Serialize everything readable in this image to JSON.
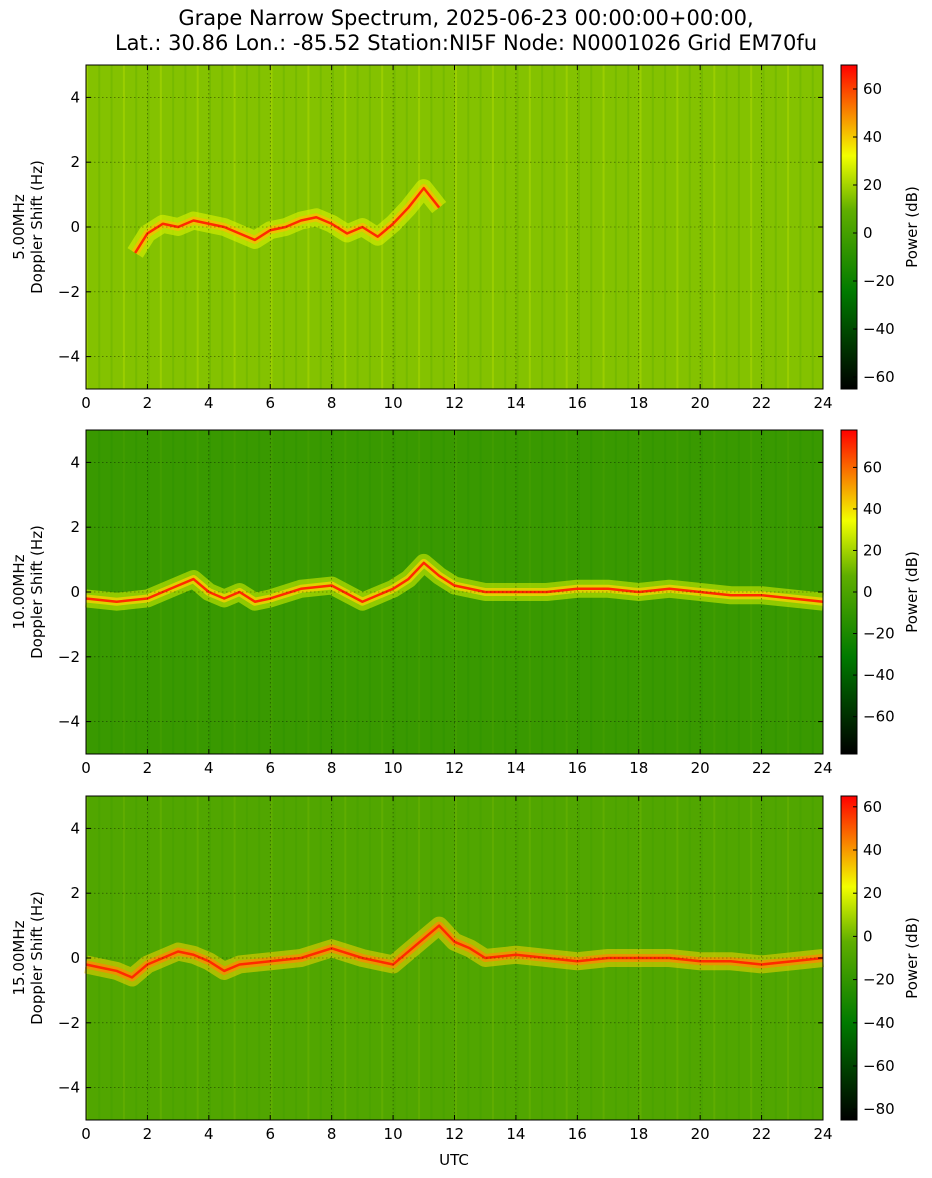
{
  "figure": {
    "title_line1": "Grape Narrow Spectrum, 2025-06-23 00:00:00+00:00,",
    "title_line2": "Lat.: 30.86 Lon.: -85.52 Station:NI5F Node: N0001026 Grid EM70fu",
    "xlabel": "UTC",
    "colormap": [
      "#000000",
      "#007a00",
      "#f2ff00",
      "#ff0000"
    ]
  },
  "chart_data": [
    {
      "type": "heatmap",
      "ylabel_line1": "5.00MHz",
      "ylabel_line2": "Doppler Shift (Hz)",
      "xlim": [
        0,
        24
      ],
      "ylim": [
        -5,
        5
      ],
      "xticks": [
        0,
        2,
        4,
        6,
        8,
        10,
        12,
        14,
        16,
        18,
        20,
        22,
        24
      ],
      "yticks": [
        -4,
        -2,
        0,
        2,
        4
      ],
      "grid": true,
      "colorbar": {
        "label": "Power (dB)",
        "range": [
          -65,
          70
        ],
        "ticks": [
          -60,
          -40,
          -20,
          0,
          20,
          40,
          60
        ]
      },
      "background_db": 15,
      "trace": {
        "x": [
          1.6,
          2.0,
          2.5,
          3.0,
          3.5,
          4.0,
          4.5,
          5.0,
          5.5,
          6.0,
          6.5,
          7.0,
          7.5,
          8.0,
          8.5,
          9.0,
          9.5,
          10.0,
          10.5,
          11.0,
          11.5
        ],
        "y": [
          -0.8,
          -0.2,
          0.1,
          0.0,
          0.2,
          0.1,
          0.0,
          -0.2,
          -0.4,
          -0.1,
          0.0,
          0.2,
          0.3,
          0.1,
          -0.2,
          0.0,
          -0.3,
          0.1,
          0.6,
          1.2,
          0.6
        ]
      }
    },
    {
      "type": "heatmap",
      "ylabel_line1": "10.00MHz",
      "ylabel_line2": "Doppler Shift (Hz)",
      "xlim": [
        0,
        24
      ],
      "ylim": [
        -5,
        5
      ],
      "xticks": [
        0,
        2,
        4,
        6,
        8,
        10,
        12,
        14,
        16,
        18,
        20,
        22,
        24
      ],
      "yticks": [
        -4,
        -2,
        0,
        2,
        4
      ],
      "grid": true,
      "colorbar": {
        "label": "Power (dB)",
        "range": [
          -78,
          78
        ],
        "ticks": [
          -60,
          -40,
          -20,
          0,
          20,
          40,
          60
        ]
      },
      "background_db": -8,
      "trace": {
        "x": [
          0.0,
          1.0,
          2.0,
          2.5,
          3.0,
          3.5,
          4.0,
          4.5,
          5.0,
          5.5,
          6.0,
          7.0,
          8.0,
          9.0,
          10.0,
          10.5,
          11.0,
          11.5,
          12.0,
          13.0,
          14.0,
          15.0,
          16.0,
          17.0,
          18.0,
          19.0,
          20.0,
          21.0,
          22.0,
          23.0,
          24.0
        ],
        "y": [
          -0.2,
          -0.3,
          -0.2,
          0.0,
          0.2,
          0.4,
          0.0,
          -0.2,
          0.0,
          -0.3,
          -0.2,
          0.1,
          0.2,
          -0.3,
          0.1,
          0.4,
          0.9,
          0.5,
          0.2,
          0.0,
          0.0,
          0.0,
          0.1,
          0.1,
          0.0,
          0.1,
          0.0,
          -0.1,
          -0.1,
          -0.2,
          -0.3
        ]
      }
    },
    {
      "type": "heatmap",
      "ylabel_line1": "15.00MHz",
      "ylabel_line2": "Doppler Shift (Hz)",
      "xlim": [
        0,
        24
      ],
      "ylim": [
        -5,
        5
      ],
      "xticks": [
        0,
        2,
        4,
        6,
        8,
        10,
        12,
        14,
        16,
        18,
        20,
        22,
        24
      ],
      "yticks": [
        -4,
        -2,
        0,
        2,
        4
      ],
      "grid": true,
      "colorbar": {
        "label": "Power (dB)",
        "range": [
          -85,
          65
        ],
        "ticks": [
          -80,
          -60,
          -40,
          -20,
          0,
          20,
          40,
          60
        ]
      },
      "background_db": -8,
      "trace": {
        "x": [
          0.0,
          0.5,
          1.0,
          1.5,
          2.0,
          2.5,
          3.0,
          3.5,
          4.0,
          4.5,
          5.0,
          6.0,
          7.0,
          8.0,
          9.0,
          10.0,
          11.0,
          11.5,
          12.0,
          12.5,
          13.0,
          14.0,
          15.0,
          16.0,
          17.0,
          18.0,
          19.0,
          20.0,
          21.0,
          22.0,
          23.0,
          24.0
        ],
        "y": [
          -0.2,
          -0.3,
          -0.4,
          -0.6,
          -0.2,
          0.0,
          0.2,
          0.1,
          -0.1,
          -0.4,
          -0.2,
          -0.1,
          0.0,
          0.3,
          0.0,
          -0.2,
          0.6,
          1.0,
          0.5,
          0.3,
          0.0,
          0.1,
          0.0,
          -0.1,
          0.0,
          0.0,
          0.0,
          -0.1,
          -0.1,
          -0.2,
          -0.1,
          0.0
        ]
      }
    }
  ]
}
